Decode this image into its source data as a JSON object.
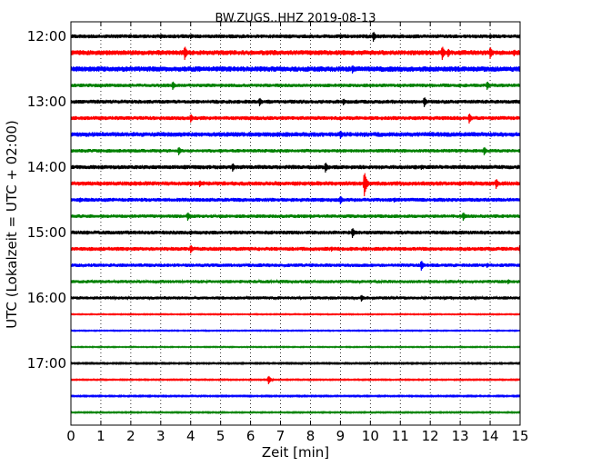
{
  "chart_data": {
    "type": "line",
    "title": "BW.ZUGS..HHZ 2019-08-13",
    "xlabel": "Zeit  [min]",
    "ylabel": "UTC (Lokalzeit = UTC + 02:00)",
    "xlim": [
      0,
      15
    ],
    "x_ticks": [
      "0",
      "1",
      "2",
      "3",
      "4",
      "5",
      "6",
      "7",
      "8",
      "9",
      "10",
      "11",
      "12",
      "13",
      "14",
      "15"
    ],
    "y_tick_labels": [
      "12:00",
      "13:00",
      "14:00",
      "15:00",
      "16:00",
      "17:00"
    ],
    "grid": "vertical dotted at each minute",
    "trace_colors": [
      "#000000",
      "#ff0000",
      "#0000ff",
      "#008000"
    ],
    "traces": [
      {
        "start": "12:00",
        "color": "#000000",
        "noise": 2.2,
        "events": [
          [
            3.0,
            3
          ],
          [
            4.0,
            3
          ],
          [
            9.0,
            3
          ],
          [
            10.1,
            6
          ],
          [
            14.0,
            3
          ]
        ]
      },
      {
        "start": "12:15",
        "color": "#ff0000",
        "noise": 2.8,
        "events": [
          [
            1.2,
            3
          ],
          [
            3.8,
            8
          ],
          [
            12.4,
            8
          ],
          [
            12.6,
            5
          ],
          [
            14.0,
            7
          ],
          [
            14.8,
            4
          ]
        ]
      },
      {
        "start": "12:30",
        "color": "#0000ff",
        "noise": 3.0,
        "events": [
          [
            4.3,
            3
          ],
          [
            9.4,
            5
          ],
          [
            12.0,
            3
          ]
        ]
      },
      {
        "start": "12:45",
        "color": "#008000",
        "noise": 2.0,
        "events": [
          [
            3.4,
            5
          ],
          [
            13.9,
            5
          ]
        ]
      },
      {
        "start": "13:00",
        "color": "#000000",
        "noise": 2.2,
        "events": [
          [
            6.3,
            5
          ],
          [
            9.1,
            4
          ],
          [
            11.8,
            6
          ]
        ]
      },
      {
        "start": "13:15",
        "color": "#ff0000",
        "noise": 2.2,
        "events": [
          [
            4.0,
            5
          ],
          [
            13.3,
            6
          ]
        ]
      },
      {
        "start": "13:30",
        "color": "#0000ff",
        "noise": 2.6,
        "events": [
          [
            6.9,
            3
          ],
          [
            9.0,
            5
          ],
          [
            9.8,
            3
          ]
        ]
      },
      {
        "start": "13:45",
        "color": "#008000",
        "noise": 2.0,
        "events": [
          [
            3.6,
            5
          ],
          [
            13.8,
            5
          ]
        ]
      },
      {
        "start": "14:00",
        "color": "#000000",
        "noise": 2.3,
        "events": [
          [
            5.4,
            5
          ],
          [
            8.5,
            6
          ],
          [
            11.7,
            3
          ]
        ]
      },
      {
        "start": "14:15",
        "color": "#ff0000",
        "noise": 2.4,
        "events": [
          [
            4.3,
            4
          ],
          [
            9.8,
            14
          ],
          [
            14.2,
            6
          ]
        ]
      },
      {
        "start": "14:30",
        "color": "#0000ff",
        "noise": 2.2,
        "events": [
          [
            0.3,
            3
          ],
          [
            9.0,
            5
          ],
          [
            10.8,
            3
          ]
        ]
      },
      {
        "start": "14:45",
        "color": "#008000",
        "noise": 2.0,
        "events": [
          [
            3.9,
            5
          ],
          [
            13.1,
            5
          ]
        ]
      },
      {
        "start": "15:00",
        "color": "#000000",
        "noise": 2.2,
        "events": [
          [
            4.0,
            3
          ],
          [
            9.4,
            6
          ]
        ]
      },
      {
        "start": "15:15",
        "color": "#ff0000",
        "noise": 2.2,
        "events": [
          [
            4.0,
            5
          ],
          [
            8.7,
            3
          ],
          [
            15.0,
            6
          ]
        ]
      },
      {
        "start": "15:30",
        "color": "#0000ff",
        "noise": 2.0,
        "events": [
          [
            11.7,
            6
          ],
          [
            13.9,
            3
          ]
        ]
      },
      {
        "start": "15:45",
        "color": "#008000",
        "noise": 1.8,
        "events": [
          [
            14.6,
            3
          ]
        ]
      },
      {
        "start": "16:00",
        "color": "#000000",
        "noise": 1.8,
        "events": [
          [
            9.7,
            4
          ]
        ]
      },
      {
        "start": "16:15",
        "color": "#ff0000",
        "noise": 0.6,
        "events": []
      },
      {
        "start": "16:30",
        "color": "#0000ff",
        "noise": 0.6,
        "events": []
      },
      {
        "start": "16:45",
        "color": "#008000",
        "noise": 0.6,
        "events": []
      },
      {
        "start": "17:00",
        "color": "#000000",
        "noise": 0.8,
        "events": []
      },
      {
        "start": "17:15",
        "color": "#ff0000",
        "noise": 0.7,
        "events": [
          [
            6.6,
            5
          ]
        ]
      },
      {
        "start": "17:30",
        "color": "#0000ff",
        "noise": 0.8,
        "events": []
      },
      {
        "start": "17:45",
        "color": "#008000",
        "noise": 0.7,
        "events": []
      }
    ]
  }
}
